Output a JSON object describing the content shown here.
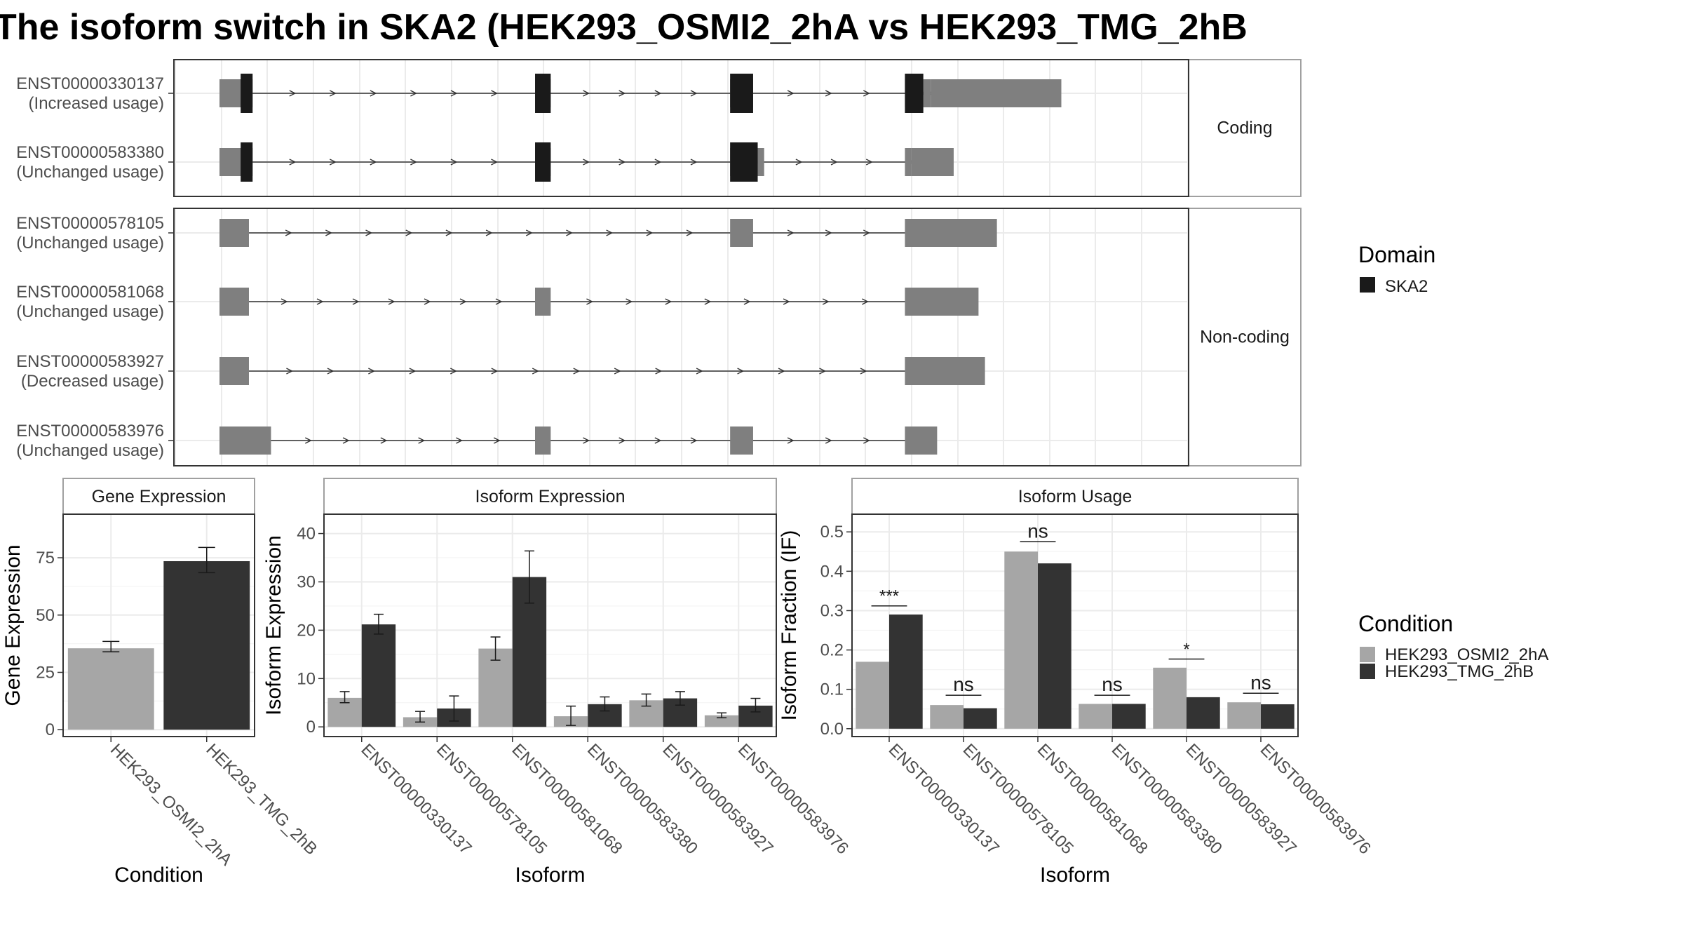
{
  "title": "The isoform switch in SKA2 (HEK293_OSMI2_2hA vs HEK293_TMG_2hB",
  "colors": {
    "exon": "#7f7f7f",
    "domain": "#1a1a1a",
    "cond1": "#a6a6a6",
    "cond2": "#333333",
    "grid": "#ebebeb",
    "strip_bg": "#ffffff"
  },
  "structure": {
    "groups": [
      {
        "label": "Coding",
        "transcripts": [
          {
            "id": "ENST00000330137",
            "usage": "(Increased usage)",
            "exons": [
              [
                0,
                2.6
              ],
              [
                2.6,
                3.6
              ],
              [
                34.3,
                36.0
              ],
              [
                55.5,
                58.0
              ],
              [
                74.5,
                76.5
              ],
              [
                76.5,
                77.3
              ],
              [
                77.3,
                91.5
              ]
            ],
            "coding": [
              [
                2.3,
                3.6
              ],
              [
                34.3,
                36.0
              ],
              [
                55.5,
                58.0
              ],
              [
                74.5,
                76.5
              ]
            ],
            "thin": [
              [
                0,
                2.3
              ],
              [
                76.5,
                91.5
              ]
            ]
          },
          {
            "id": "ENST00000583380",
            "usage": "(Unchanged usage)",
            "exons": [
              [
                0,
                2.6
              ],
              [
                2.6,
                3.6
              ],
              [
                34.3,
                36.0
              ],
              [
                55.5,
                58.5
              ],
              [
                58.5,
                59.2
              ],
              [
                74.5,
                75.2
              ],
              [
                75.2,
                79.8
              ]
            ],
            "coding": [
              [
                2.3,
                3.6
              ],
              [
                34.3,
                36.0
              ],
              [
                55.5,
                58.5
              ]
            ],
            "thin": [
              [
                0,
                2.3
              ],
              [
                58.5,
                59.2
              ],
              [
                74.5,
                79.8
              ]
            ]
          }
        ]
      },
      {
        "label": "Non-coding",
        "transcripts": [
          {
            "id": "ENST00000578105",
            "usage": "(Unchanged usage)",
            "exons": [
              [
                0,
                3.2
              ],
              [
                55.5,
                58.0
              ],
              [
                74.5,
                84.5
              ]
            ]
          },
          {
            "id": "ENST00000581068",
            "usage": "(Unchanged usage)",
            "exons": [
              [
                0,
                3.2
              ],
              [
                34.3,
                36.0
              ],
              [
                74.5,
                82.5
              ]
            ]
          },
          {
            "id": "ENST00000583927",
            "usage": "(Decreased usage)",
            "exons": [
              [
                0,
                3.2
              ],
              [
                74.5,
                83.2
              ]
            ]
          },
          {
            "id": "ENST00000583976",
            "usage": "(Unchanged usage)",
            "exons": [
              [
                0,
                5.6
              ],
              [
                34.3,
                36.0
              ],
              [
                55.5,
                58.0
              ],
              [
                74.5,
                78.0
              ]
            ]
          }
        ]
      }
    ],
    "legend_title": "Domain",
    "legend_item": "SKA2"
  },
  "chart_data": [
    {
      "type": "bar",
      "title": "Gene Expression",
      "xlabel": "Condition",
      "ylabel": "Gene Expression",
      "ylim": [
        -3,
        94
      ],
      "yticks": [
        0,
        25,
        50,
        75
      ],
      "categories": [
        "HEK293_OSMI2_2hA",
        "HEK293_TMG_2hB"
      ],
      "values": [
        35.5,
        73.5
      ],
      "errors": [
        [
          34.0,
          38.5
        ],
        [
          68.5,
          79.5
        ]
      ]
    },
    {
      "type": "bar",
      "title": "Isoform Expression",
      "xlabel": "Isoform",
      "ylabel": "Isoform Expression",
      "ylim": [
        -2,
        44
      ],
      "yticks": [
        0,
        10,
        20,
        30,
        40
      ],
      "categories": [
        "ENST00000330137",
        "ENST00000578105",
        "ENST00000581068",
        "ENST00000583380",
        "ENST00000583927",
        "ENST00000583976"
      ],
      "series": [
        {
          "name": "HEK293_OSMI2_2hA",
          "values": [
            6.0,
            2.0,
            16.2,
            2.2,
            5.5,
            2.4
          ],
          "errors": [
            [
              5.0,
              7.3
            ],
            [
              1.0,
              3.2
            ],
            [
              13.8,
              18.6
            ],
            [
              0.3,
              4.3
            ],
            [
              4.3,
              6.8
            ],
            [
              1.9,
              2.9
            ]
          ]
        },
        {
          "name": "HEK293_TMG_2hB",
          "values": [
            21.2,
            3.8,
            31.0,
            4.7,
            5.9,
            4.4
          ],
          "errors": [
            [
              19.2,
              23.3
            ],
            [
              1.2,
              6.4
            ],
            [
              25.6,
              36.4
            ],
            [
              3.3,
              6.2
            ],
            [
              4.5,
              7.3
            ],
            [
              3.1,
              5.9
            ]
          ]
        }
      ]
    },
    {
      "type": "bar",
      "title": "Isoform Usage",
      "xlabel": "Isoform",
      "ylabel": "Isoform Fraction (IF)",
      "ylim": [
        -0.02,
        0.545
      ],
      "yticks": [
        0.0,
        0.1,
        0.2,
        0.3,
        0.4,
        0.5
      ],
      "ytick_labels": [
        "0.0",
        "0.1",
        "0.2",
        "0.3",
        "0.4",
        "0.5"
      ],
      "categories": [
        "ENST00000330137",
        "ENST00000578105",
        "ENST00000581068",
        "ENST00000583380",
        "ENST00000583927",
        "ENST00000583976"
      ],
      "series": [
        {
          "name": "HEK293_OSMI2_2hA",
          "values": [
            0.17,
            0.06,
            0.45,
            0.063,
            0.155,
            0.067
          ]
        },
        {
          "name": "HEK293_TMG_2hB",
          "values": [
            0.29,
            0.052,
            0.42,
            0.063,
            0.08,
            0.062
          ]
        }
      ],
      "significance": [
        "***",
        "ns",
        "ns",
        "ns",
        "*",
        "ns"
      ],
      "significance_y": [
        0.312,
        0.085,
        0.475,
        0.085,
        0.177,
        0.09
      ]
    }
  ],
  "legend": {
    "title": "Condition",
    "items": [
      "HEK293_OSMI2_2hA",
      "HEK293_TMG_2hB"
    ]
  }
}
